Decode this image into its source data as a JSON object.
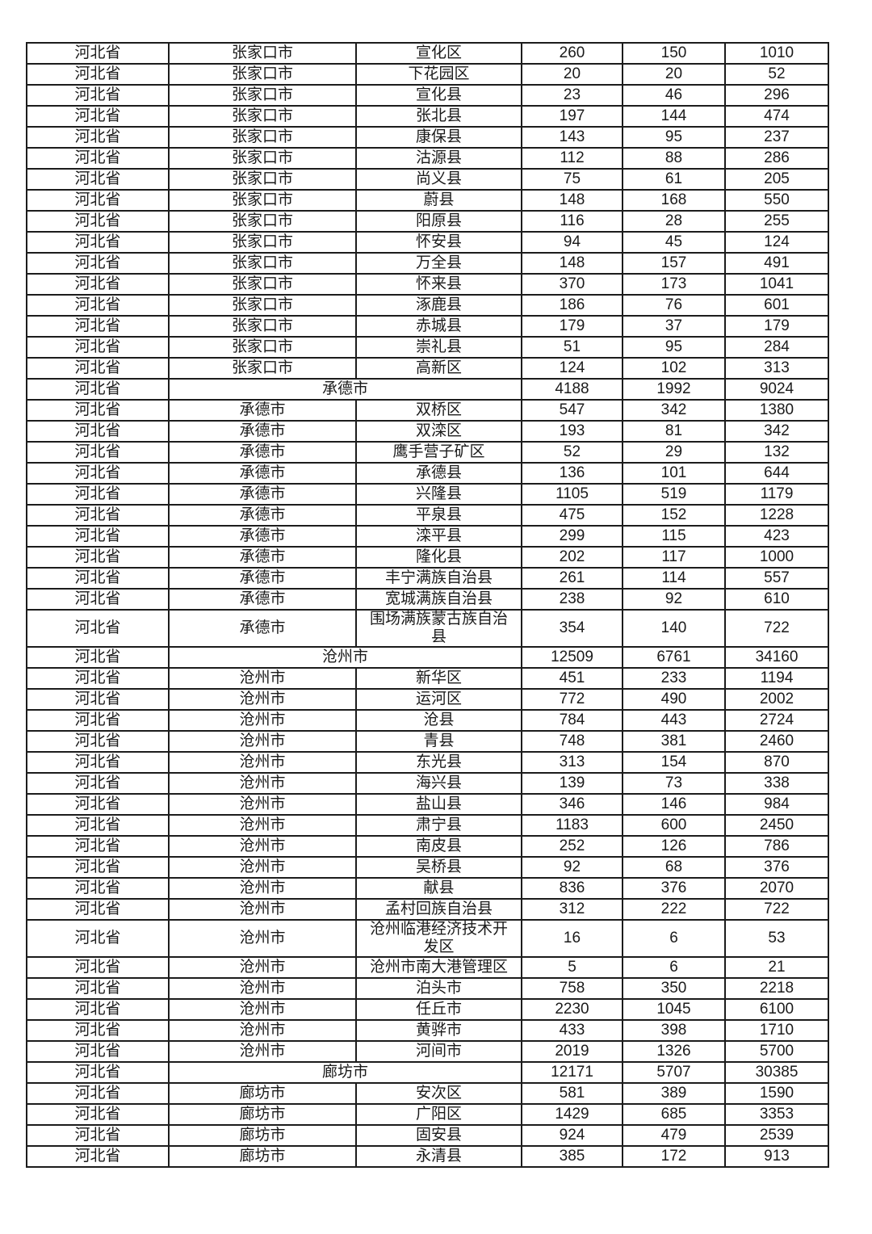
{
  "table": {
    "province_label": "河北省",
    "rows": [
      {
        "province": "河北省",
        "city": "张家口市",
        "district": "宣化区",
        "values": [
          260,
          150,
          1010
        ],
        "summary": false
      },
      {
        "province": "河北省",
        "city": "张家口市",
        "district": "下花园区",
        "values": [
          20,
          20,
          52
        ],
        "summary": false
      },
      {
        "province": "河北省",
        "city": "张家口市",
        "district": "宣化县",
        "values": [
          23,
          46,
          296
        ],
        "summary": false
      },
      {
        "province": "河北省",
        "city": "张家口市",
        "district": "张北县",
        "values": [
          197,
          144,
          474
        ],
        "summary": false
      },
      {
        "province": "河北省",
        "city": "张家口市",
        "district": "康保县",
        "values": [
          143,
          95,
          237
        ],
        "summary": false
      },
      {
        "province": "河北省",
        "city": "张家口市",
        "district": "沽源县",
        "values": [
          112,
          88,
          286
        ],
        "summary": false
      },
      {
        "province": "河北省",
        "city": "张家口市",
        "district": "尚义县",
        "values": [
          75,
          61,
          205
        ],
        "summary": false
      },
      {
        "province": "河北省",
        "city": "张家口市",
        "district": "蔚县",
        "values": [
          148,
          168,
          550
        ],
        "summary": false
      },
      {
        "province": "河北省",
        "city": "张家口市",
        "district": "阳原县",
        "values": [
          116,
          28,
          255
        ],
        "summary": false
      },
      {
        "province": "河北省",
        "city": "张家口市",
        "district": "怀安县",
        "values": [
          94,
          45,
          124
        ],
        "summary": false
      },
      {
        "province": "河北省",
        "city": "张家口市",
        "district": "万全县",
        "values": [
          148,
          157,
          491
        ],
        "summary": false
      },
      {
        "province": "河北省",
        "city": "张家口市",
        "district": "怀来县",
        "values": [
          370,
          173,
          1041
        ],
        "summary": false
      },
      {
        "province": "河北省",
        "city": "张家口市",
        "district": "涿鹿县",
        "values": [
          186,
          76,
          601
        ],
        "summary": false
      },
      {
        "province": "河北省",
        "city": "张家口市",
        "district": "赤城县",
        "values": [
          179,
          37,
          179
        ],
        "summary": false
      },
      {
        "province": "河北省",
        "city": "张家口市",
        "district": "崇礼县",
        "values": [
          51,
          95,
          284
        ],
        "summary": false
      },
      {
        "province": "河北省",
        "city": "张家口市",
        "district": "高新区",
        "values": [
          124,
          102,
          313
        ],
        "summary": false
      },
      {
        "province": "河北省",
        "city": "承德市",
        "district": null,
        "values": [
          4188,
          1992,
          9024
        ],
        "summary": true
      },
      {
        "province": "河北省",
        "city": "承德市",
        "district": "双桥区",
        "values": [
          547,
          342,
          1380
        ],
        "summary": false
      },
      {
        "province": "河北省",
        "city": "承德市",
        "district": "双滦区",
        "values": [
          193,
          81,
          342
        ],
        "summary": false
      },
      {
        "province": "河北省",
        "city": "承德市",
        "district": "鹰手营子矿区",
        "values": [
          52,
          29,
          132
        ],
        "summary": false
      },
      {
        "province": "河北省",
        "city": "承德市",
        "district": "承德县",
        "values": [
          136,
          101,
          644
        ],
        "summary": false
      },
      {
        "province": "河北省",
        "city": "承德市",
        "district": "兴隆县",
        "values": [
          1105,
          519,
          1179
        ],
        "summary": false
      },
      {
        "province": "河北省",
        "city": "承德市",
        "district": "平泉县",
        "values": [
          475,
          152,
          1228
        ],
        "summary": false
      },
      {
        "province": "河北省",
        "city": "承德市",
        "district": "滦平县",
        "values": [
          299,
          115,
          423
        ],
        "summary": false
      },
      {
        "province": "河北省",
        "city": "承德市",
        "district": "隆化县",
        "values": [
          202,
          117,
          1000
        ],
        "summary": false
      },
      {
        "province": "河北省",
        "city": "承德市",
        "district": "丰宁满族自治县",
        "values": [
          261,
          114,
          557
        ],
        "summary": false
      },
      {
        "province": "河北省",
        "city": "承德市",
        "district": "宽城满族自治县",
        "values": [
          238,
          92,
          610
        ],
        "summary": false
      },
      {
        "province": "河北省",
        "city": "承德市",
        "district": "围场满族蒙古族自治县",
        "values": [
          354,
          140,
          722
        ],
        "summary": false
      },
      {
        "province": "河北省",
        "city": "沧州市",
        "district": null,
        "values": [
          12509,
          6761,
          34160
        ],
        "summary": true
      },
      {
        "province": "河北省",
        "city": "沧州市",
        "district": "新华区",
        "values": [
          451,
          233,
          1194
        ],
        "summary": false
      },
      {
        "province": "河北省",
        "city": "沧州市",
        "district": "运河区",
        "values": [
          772,
          490,
          2002
        ],
        "summary": false
      },
      {
        "province": "河北省",
        "city": "沧州市",
        "district": "沧县",
        "values": [
          784,
          443,
          2724
        ],
        "summary": false
      },
      {
        "province": "河北省",
        "city": "沧州市",
        "district": "青县",
        "values": [
          748,
          381,
          2460
        ],
        "summary": false
      },
      {
        "province": "河北省",
        "city": "沧州市",
        "district": "东光县",
        "values": [
          313,
          154,
          870
        ],
        "summary": false
      },
      {
        "province": "河北省",
        "city": "沧州市",
        "district": "海兴县",
        "values": [
          139,
          73,
          338
        ],
        "summary": false
      },
      {
        "province": "河北省",
        "city": "沧州市",
        "district": "盐山县",
        "values": [
          346,
          146,
          984
        ],
        "summary": false
      },
      {
        "province": "河北省",
        "city": "沧州市",
        "district": "肃宁县",
        "values": [
          1183,
          600,
          2450
        ],
        "summary": false
      },
      {
        "province": "河北省",
        "city": "沧州市",
        "district": "南皮县",
        "values": [
          252,
          126,
          786
        ],
        "summary": false
      },
      {
        "province": "河北省",
        "city": "沧州市",
        "district": "吴桥县",
        "values": [
          92,
          68,
          376
        ],
        "summary": false
      },
      {
        "province": "河北省",
        "city": "沧州市",
        "district": "献县",
        "values": [
          836,
          376,
          2070
        ],
        "summary": false
      },
      {
        "province": "河北省",
        "city": "沧州市",
        "district": "孟村回族自治县",
        "values": [
          312,
          222,
          722
        ],
        "summary": false
      },
      {
        "province": "河北省",
        "city": "沧州市",
        "district": "沧州临港经济技术开发区",
        "values": [
          16,
          6,
          53
        ],
        "summary": false
      },
      {
        "province": "河北省",
        "city": "沧州市",
        "district": "沧州市南大港管理区",
        "values": [
          5,
          6,
          21
        ],
        "summary": false
      },
      {
        "province": "河北省",
        "city": "沧州市",
        "district": "泊头市",
        "values": [
          758,
          350,
          2218
        ],
        "summary": false
      },
      {
        "province": "河北省",
        "city": "沧州市",
        "district": "任丘市",
        "values": [
          2230,
          1045,
          6100
        ],
        "summary": false
      },
      {
        "province": "河北省",
        "city": "沧州市",
        "district": "黄骅市",
        "values": [
          433,
          398,
          1710
        ],
        "summary": false
      },
      {
        "province": "河北省",
        "city": "沧州市",
        "district": "河间市",
        "values": [
          2019,
          1326,
          5700
        ],
        "summary": false
      },
      {
        "province": "河北省",
        "city": "廊坊市",
        "district": null,
        "values": [
          12171,
          5707,
          30385
        ],
        "summary": true
      },
      {
        "province": "河北省",
        "city": "廊坊市",
        "district": "安次区",
        "values": [
          581,
          389,
          1590
        ],
        "summary": false
      },
      {
        "province": "河北省",
        "city": "廊坊市",
        "district": "广阳区",
        "values": [
          1429,
          685,
          3353
        ],
        "summary": false
      },
      {
        "province": "河北省",
        "city": "廊坊市",
        "district": "固安县",
        "values": [
          924,
          479,
          2539
        ],
        "summary": false
      },
      {
        "province": "河北省",
        "city": "廊坊市",
        "district": "永清县",
        "values": [
          385,
          172,
          913
        ],
        "summary": false
      }
    ],
    "colors": {
      "border": "#1c1c1c",
      "text": "#1a1a1a",
      "background": "#ffffff"
    }
  }
}
